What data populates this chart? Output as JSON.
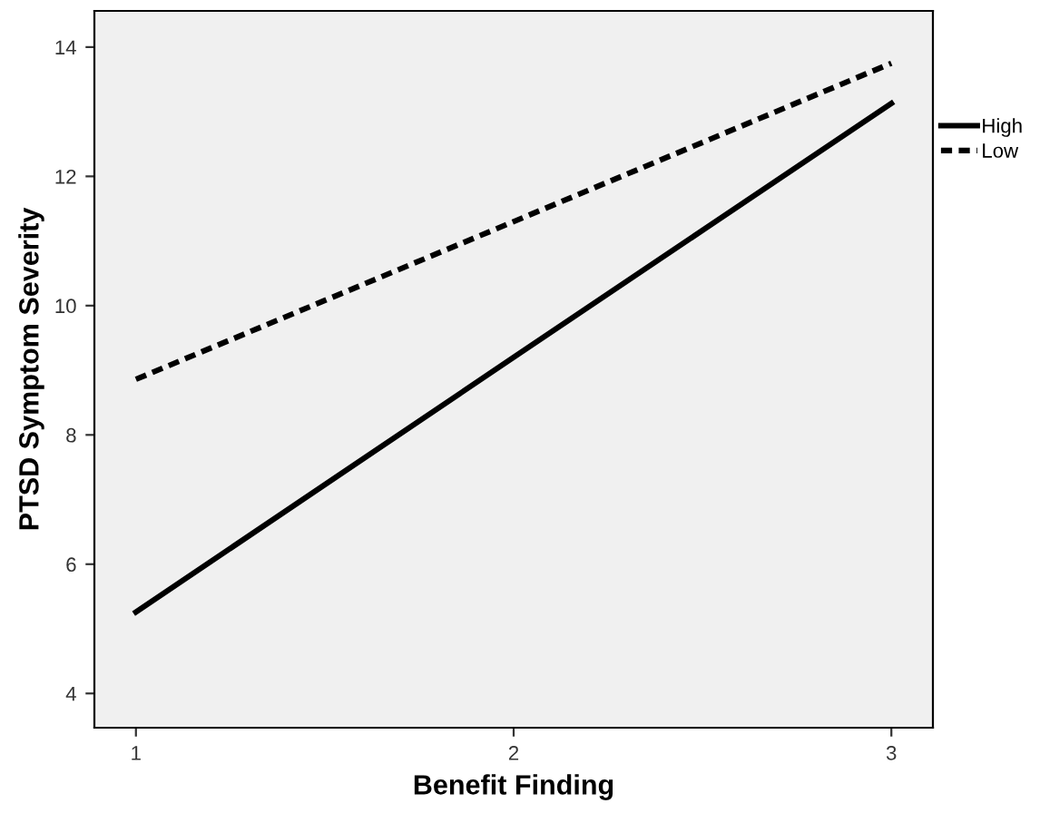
{
  "chart_data": {
    "type": "line",
    "xlabel": "Benefit Finding",
    "ylabel": "PTSD Symptom Severity",
    "x": [
      1,
      2,
      3
    ],
    "series": [
      {
        "name": "High",
        "color": "#000000",
        "values": [
          5.26,
          9.2,
          13.13
        ],
        "line_style": "solid"
      },
      {
        "name": "Low",
        "color": "#000000",
        "values": [
          8.86,
          11.3,
          13.75
        ],
        "line_style": "dotted"
      }
    ],
    "xlim": [
      0.89,
      3.11
    ],
    "xticks": [
      1,
      2,
      3
    ],
    "ylim": [
      3.47,
      14.56
    ],
    "yticks": [
      4,
      6,
      8,
      10,
      12,
      14
    ],
    "grid": false,
    "legend": "right",
    "marker": "none"
  }
}
